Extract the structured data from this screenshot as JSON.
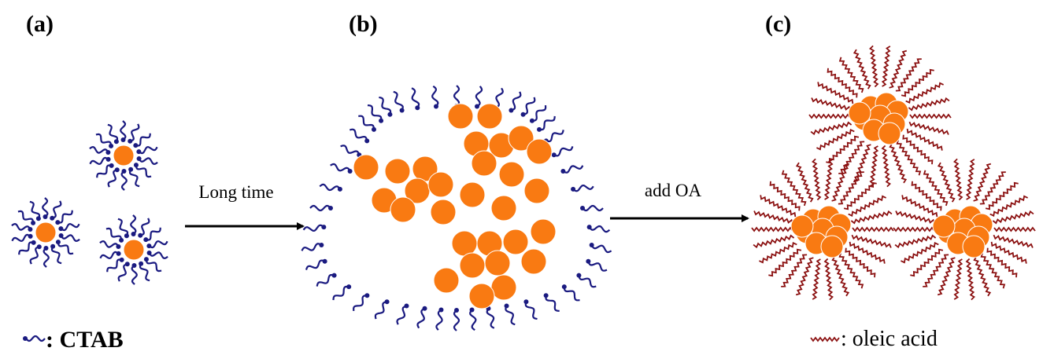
{
  "panels": [
    {
      "label": "(a)"
    },
    {
      "label": "(b)"
    },
    {
      "label": "(c)"
    }
  ],
  "arrows": [
    {
      "label": "Long time"
    },
    {
      "label": "add OA"
    }
  ],
  "legend": [
    {
      "label": ": CTAB"
    },
    {
      "label": ": oleic acid"
    }
  ]
}
